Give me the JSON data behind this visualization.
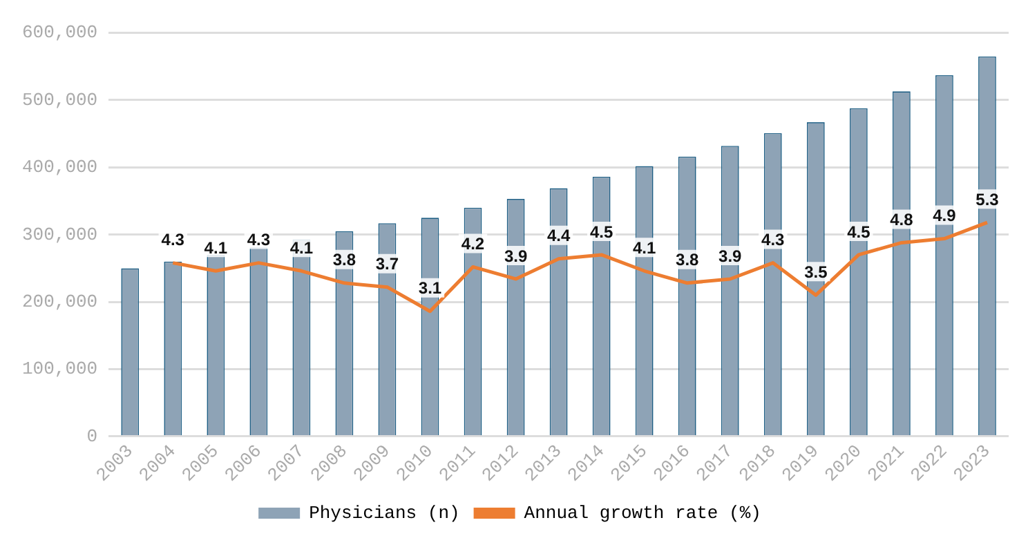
{
  "chart_data": {
    "type": "bar",
    "categories": [
      "2003",
      "2004",
      "2005",
      "2006",
      "2007",
      "2008",
      "2009",
      "2010",
      "2011",
      "2012",
      "2013",
      "2014",
      "2015",
      "2016",
      "2017",
      "2018",
      "2019",
      "2020",
      "2021",
      "2022",
      "2023"
    ],
    "series": [
      {
        "name": "Physicians (n)",
        "color": "#8ea3b6",
        "values": [
          250000,
          260000,
          270000,
          281000,
          293000,
          305000,
          317000,
          325000,
          340000,
          353000,
          369000,
          386000,
          402000,
          416000,
          432000,
          451000,
          467000,
          488000,
          513000,
          537000,
          565000
        ]
      },
      {
        "name": "Annual growth rate (%)",
        "type": "line",
        "axis": "y2",
        "color": "#ed7d31",
        "values": [
          null,
          4.3,
          4.1,
          4.3,
          4.1,
          3.8,
          3.7,
          3.1,
          4.2,
          3.9,
          4.4,
          4.5,
          4.1,
          3.8,
          3.9,
          4.3,
          3.5,
          4.5,
          4.8,
          4.9,
          5.3
        ],
        "value_labels": [
          null,
          "4.3",
          "4.1",
          "4.3",
          "4.1",
          "3.8",
          "3.7",
          "3.1",
          "4.2",
          "3.9",
          "4.4",
          "4.5",
          "4.1",
          "3.8",
          "3.9",
          "4.3",
          "3.5",
          "4.5",
          "4.8",
          "4.9",
          "5.3"
        ]
      }
    ],
    "ylim": [
      0,
      600000
    ],
    "yticks": [
      {
        "value": 0,
        "label": "0"
      },
      {
        "value": 100000,
        "label": "100,000"
      },
      {
        "value": 200000,
        "label": "200,000"
      },
      {
        "value": 300000,
        "label": "300,000"
      },
      {
        "value": 400000,
        "label": "400,000"
      },
      {
        "value": 500000,
        "label": "500,000"
      },
      {
        "value": 600000,
        "label": "600,000"
      }
    ],
    "y2lim": [
      0,
      10
    ],
    "grid": "y",
    "legend": "bottom",
    "marker": "none",
    "line_style": "solid"
  }
}
